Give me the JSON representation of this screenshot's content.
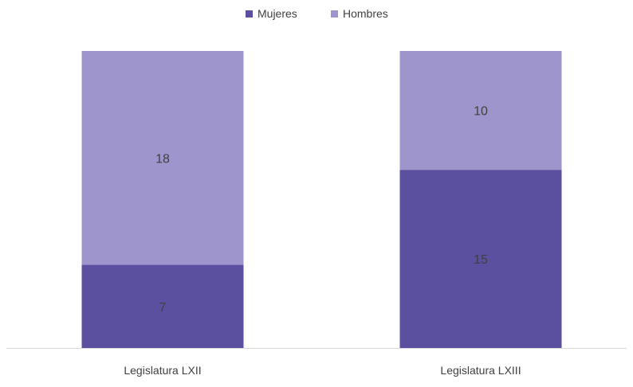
{
  "chart_data": {
    "type": "bar",
    "stacked": true,
    "categories": [
      "Legislatura LXII",
      "Legislatura LXIII"
    ],
    "series": [
      {
        "name": "Mujeres",
        "values": [
          7,
          15
        ],
        "color": "#5b4fa0"
      },
      {
        "name": "Hombres",
        "values": [
          18,
          10
        ],
        "color": "#9e95cc"
      }
    ],
    "ylim": [
      0,
      25
    ],
    "grid": false,
    "legend_position": "top",
    "data_labels": true,
    "axis_color": "#d9d9d9",
    "label_color": "#404040"
  }
}
